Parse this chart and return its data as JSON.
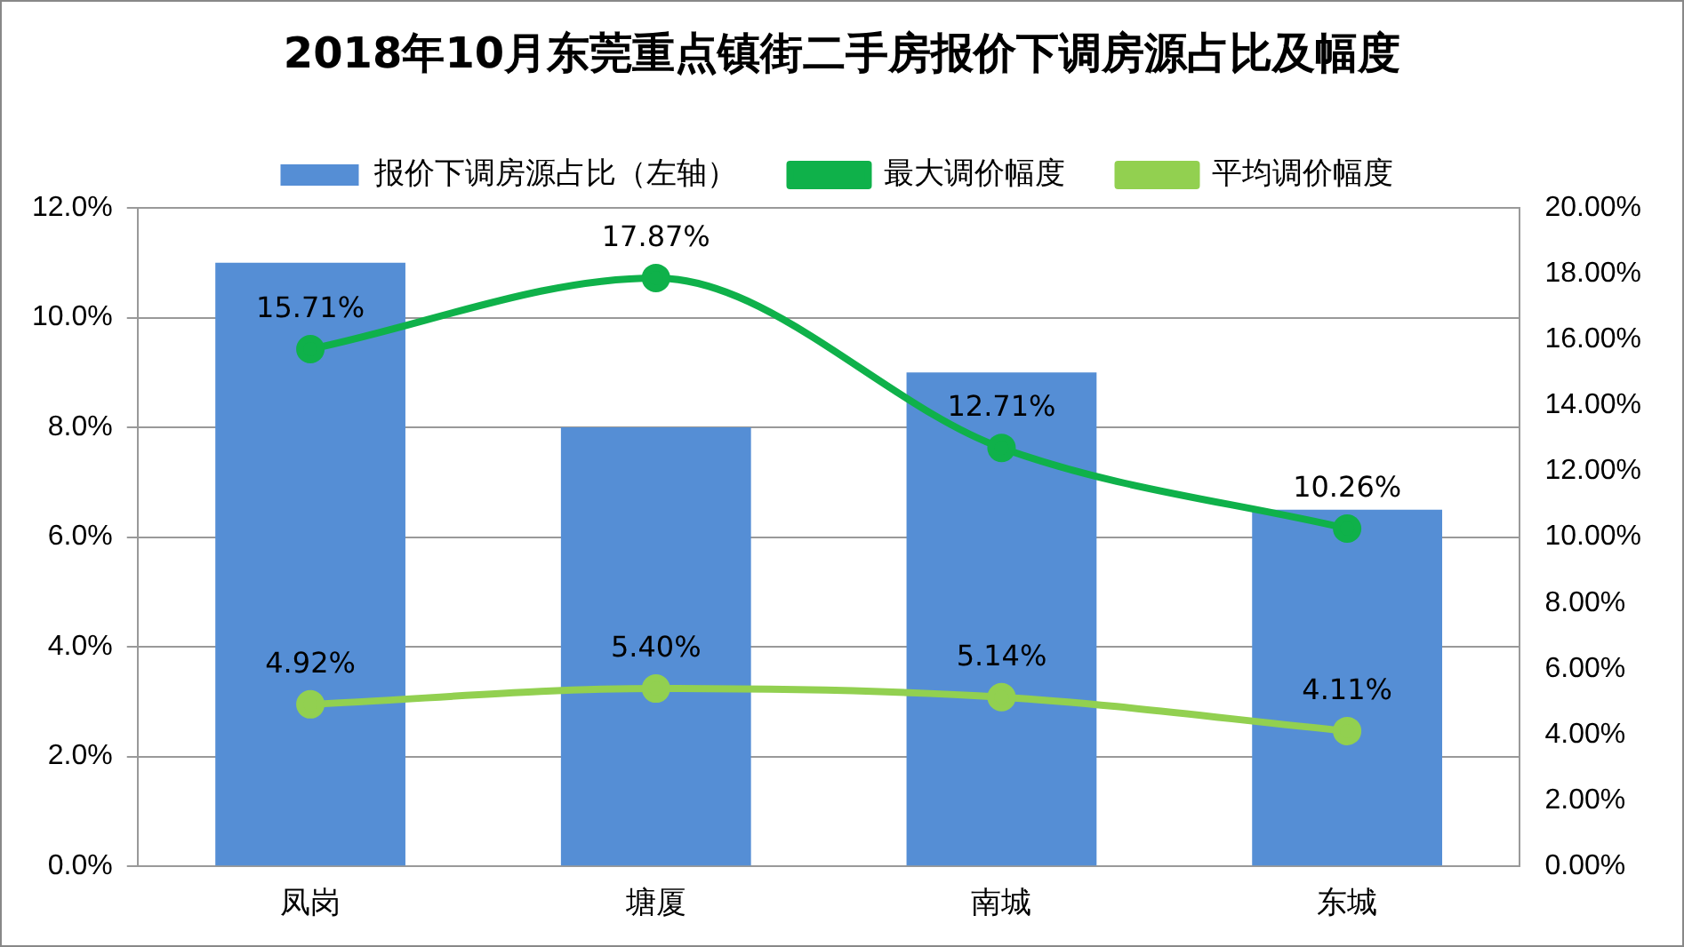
{
  "chart_data": {
    "type": "bar",
    "title": "2018年10月东莞重点镇街二手房报价下调房源占比及幅度",
    "categories": [
      "凤岗",
      "塘厦",
      "南城",
      "东城"
    ],
    "series": [
      {
        "name": "报价下调房源占比（左轴）",
        "color": "#558ed5",
        "values": [
          11.0,
          8.0,
          9.0,
          6.5
        ]
      },
      {
        "name": "最大调价幅度",
        "type": "line",
        "axis": "y2",
        "color": "#0fb14a",
        "values": [
          15.71,
          17.87,
          12.71,
          10.26
        ],
        "value_labels": [
          "15.71%",
          "17.87%",
          "12.71%",
          "10.26%"
        ]
      },
      {
        "name": "平均调价幅度",
        "type": "line",
        "axis": "y2",
        "color": "#92d050",
        "values": [
          4.92,
          5.4,
          5.14,
          4.11
        ],
        "value_labels": [
          "4.92%",
          "5.40%",
          "5.14%",
          "4.11%"
        ]
      }
    ],
    "ylim": [
      0,
      12
    ],
    "yticks": [
      {
        "value": 0,
        "label": "0.0%"
      },
      {
        "value": 2,
        "label": "2.0%"
      },
      {
        "value": 4,
        "label": "4.0%"
      },
      {
        "value": 6,
        "label": "6.0%"
      },
      {
        "value": 8,
        "label": "8.0%"
      },
      {
        "value": 10,
        "label": "10.0%"
      },
      {
        "value": 12,
        "label": "12.0%"
      }
    ],
    "y2lim": [
      0,
      20
    ],
    "y2ticks": [
      {
        "value": 0,
        "label": "0.00%"
      },
      {
        "value": 2,
        "label": "2.00%"
      },
      {
        "value": 4,
        "label": "4.00%"
      },
      {
        "value": 6,
        "label": "6.00%"
      },
      {
        "value": 8,
        "label": "8.00%"
      },
      {
        "value": 10,
        "label": "10.00%"
      },
      {
        "value": 12,
        "label": "12.00%"
      },
      {
        "value": 14,
        "label": "14.00%"
      },
      {
        "value": 16,
        "label": "16.00%"
      },
      {
        "value": 18,
        "label": "18.00%"
      },
      {
        "value": 20,
        "label": "20.00%"
      }
    ],
    "grid": "y",
    "legend": "top",
    "marker": "circle"
  }
}
